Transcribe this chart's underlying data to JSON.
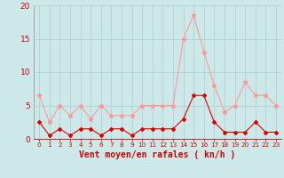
{
  "x": [
    0,
    1,
    2,
    3,
    4,
    5,
    6,
    7,
    8,
    9,
    10,
    11,
    12,
    13,
    14,
    15,
    16,
    17,
    18,
    19,
    20,
    21,
    22,
    23
  ],
  "mean_wind": [
    2.5,
    0.5,
    1.5,
    0.5,
    1.5,
    1.5,
    0.5,
    1.5,
    1.5,
    0.5,
    1.5,
    1.5,
    1.5,
    1.5,
    3.0,
    6.5,
    6.5,
    2.5,
    1.0,
    1.0,
    1.0,
    2.5,
    1.0,
    1.0
  ],
  "gust_wind": [
    6.5,
    2.5,
    5.0,
    3.5,
    5.0,
    3.0,
    5.0,
    3.5,
    3.5,
    3.5,
    5.0,
    5.0,
    5.0,
    5.0,
    15.0,
    18.5,
    13.0,
    8.0,
    4.0,
    5.0,
    8.5,
    6.5,
    6.5,
    5.0
  ],
  "xlabel": "Vent moyen/en rafales ( kn/h )",
  "ylim": [
    0,
    20
  ],
  "yticks": [
    0,
    5,
    10,
    15,
    20
  ],
  "bg_color": "#cde8e8",
  "grid_color": "#aacece",
  "mean_color": "#dd0000",
  "gust_color": "#ff9999",
  "xlabel_color": "#cc0000",
  "tick_color": "#cc0000",
  "ylabel_fontsize": 6.5,
  "xlabel_fontsize": 7.0,
  "xtick_fontsize": 5.2,
  "ytick_fontsize": 6.5
}
